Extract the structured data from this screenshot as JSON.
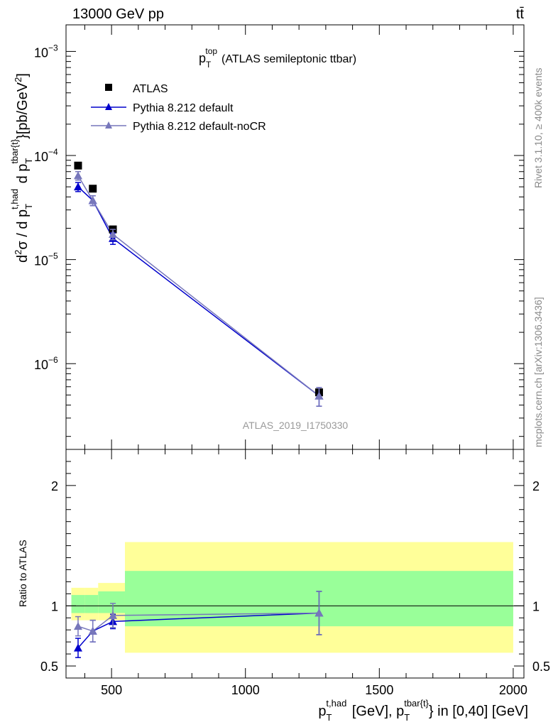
{
  "header": {
    "left": "13000 GeV pp",
    "right": "tt̄"
  },
  "side_labels": {
    "rivet": "Rivet 3.1.10, ≥ 400k events",
    "mcplots": "mcplots.cern.ch [arXiv:1306.3436]"
  },
  "watermark": "ATLAS_2019_I1750330",
  "colors": {
    "data": "#000000",
    "pythia_default": "#0000cc",
    "pythia_nocr": "#7777bb",
    "band_inner": "#99ff99",
    "band_outer": "#ffff99"
  },
  "chart_data": [
    {
      "type": "scatter",
      "panel": "main",
      "title": {
        "main": "p",
        "sub": "T",
        "sup": "top",
        "rest": "(ATLAS semileptonic ttbar)"
      },
      "ylabel": "d²σ / d p_T^{t,had} d p_T^{tbar{t}} [pb/GeV²]",
      "yscale": "log",
      "ylim": [
        1.5e-07,
        0.0018
      ],
      "xlim": [
        330,
        2040
      ],
      "y_tick_labels": [
        {
          "value": 0.001,
          "mant": "10",
          "exp": "−3"
        },
        {
          "value": 0.0001,
          "mant": "10",
          "exp": "−4"
        },
        {
          "value": 1e-05,
          "mant": "10",
          "exp": "−5"
        },
        {
          "value": 1e-06,
          "mant": "10",
          "exp": "−6"
        }
      ],
      "legend": [
        {
          "name": "ATLAS",
          "marker": "square"
        },
        {
          "name": "Pythia 8.212 default",
          "marker": "triangle"
        },
        {
          "name": "Pythia 8.212 default-noCR",
          "marker": "triangle"
        }
      ],
      "series": [
        {
          "name": "ATLAS",
          "marker": "square",
          "x": [
            375,
            430,
            505,
            1275
          ],
          "y": [
            8e-05,
            4.8e-05,
            1.95e-05,
            5.3e-07
          ],
          "yerr": [
            0,
            0,
            0,
            0
          ]
        },
        {
          "name": "Pythia 8.212 default",
          "marker": "triangle",
          "x": [
            375,
            430,
            505,
            1275
          ],
          "y": [
            5e-05,
            3.7e-05,
            1.6e-05,
            4.9e-07
          ],
          "yerr": [
            5e-06,
            4e-06,
            2e-06,
            1e-07
          ]
        },
        {
          "name": "Pythia 8.212 default-noCR",
          "marker": "triangle",
          "x": [
            375,
            430,
            505,
            1275
          ],
          "y": [
            6.4e-05,
            3.7e-05,
            1.75e-05,
            4.9e-07
          ],
          "yerr": [
            6e-06,
            4e-06,
            2e-06,
            1e-07
          ]
        }
      ]
    },
    {
      "type": "scatter",
      "panel": "ratio",
      "ylabel": "Ratio to ATLAS",
      "xlabel": "p_T^{t,had} [GeV], p_T^{tbar{t}} in [0,40] [GeV]",
      "ylim": [
        0.4,
        2.3
      ],
      "xlim": [
        330,
        2040
      ],
      "x_tick_labels": [
        "500",
        "1000",
        "1500",
        "2000"
      ],
      "x_ticks": [
        500,
        1000,
        1500,
        2000
      ],
      "y_tick_labels": [
        "0.5",
        "1",
        "2"
      ],
      "y_ticks": [
        0.5,
        1,
        2
      ],
      "bands": [
        {
          "x0": 350,
          "x1": 400,
          "inner": [
            0.94,
            1.09
          ],
          "outer": [
            0.88,
            1.15
          ]
        },
        {
          "x0": 400,
          "x1": 450,
          "inner": [
            0.94,
            1.09
          ],
          "outer": [
            0.88,
            1.15
          ]
        },
        {
          "x0": 450,
          "x1": 550,
          "inner": [
            0.94,
            1.12
          ],
          "outer": [
            0.88,
            1.19
          ]
        },
        {
          "x0": 550,
          "x1": 2000,
          "inner": [
            0.83,
            1.29
          ],
          "outer": [
            0.61,
            1.53
          ]
        }
      ],
      "series": [
        {
          "name": "Pythia 8.212 default",
          "marker": "triangle",
          "x": [
            375,
            430,
            505,
            1275
          ],
          "y": [
            0.65,
            0.79,
            0.87,
            0.94
          ],
          "yerr": [
            0.08,
            0.09,
            0.06,
            0.18
          ]
        },
        {
          "name": "Pythia 8.212 default-noCR",
          "marker": "triangle",
          "x": [
            375,
            430,
            505,
            1275
          ],
          "y": [
            0.83,
            0.79,
            0.92,
            0.94
          ],
          "yerr": [
            0.08,
            0.09,
            0.1,
            0.18
          ]
        }
      ]
    }
  ]
}
